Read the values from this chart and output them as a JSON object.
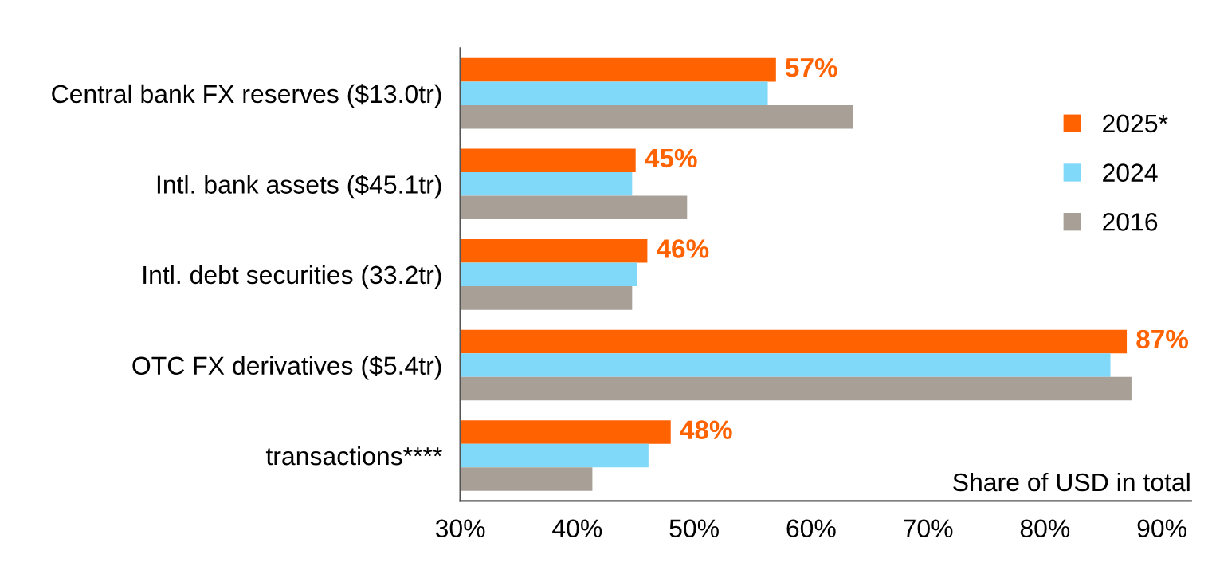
{
  "chart_data": {
    "type": "bar",
    "orientation": "horizontal",
    "xlabel": "Share of USD in total",
    "categories": [
      "Central bank FX reserves ($13.0tr)",
      "Intl. bank assets ($45.1tr)",
      "Intl. debt securities (33.2tr)",
      "OTC FX derivatives ($5.4tr)",
      "transactions****"
    ],
    "series": [
      {
        "name": "2025*",
        "color": "#ff6200",
        "values": [
          57,
          45,
          46,
          87,
          48
        ],
        "value_labels": [
          "57%",
          "45%",
          "46%",
          "87%",
          "48%"
        ]
      },
      {
        "name": "2024",
        "color": "#80d9f8",
        "values": [
          56.3,
          44.7,
          45.1,
          85.6,
          46.1
        ]
      },
      {
        "name": "2016",
        "color": "#a8a097",
        "values": [
          63.6,
          49.4,
          44.7,
          87.4,
          41.3
        ]
      }
    ],
    "xlim": [
      30,
      92.5
    ],
    "xticks": [
      {
        "value": 30,
        "label": "30%"
      },
      {
        "value": 40,
        "label": "40%"
      },
      {
        "value": 50,
        "label": "50%"
      },
      {
        "value": 60,
        "label": "60%"
      },
      {
        "value": 70,
        "label": "70%"
      },
      {
        "value": 80,
        "label": "80%"
      },
      {
        "value": 90,
        "label": "90%"
      }
    ],
    "legend": "right",
    "grid": false
  }
}
